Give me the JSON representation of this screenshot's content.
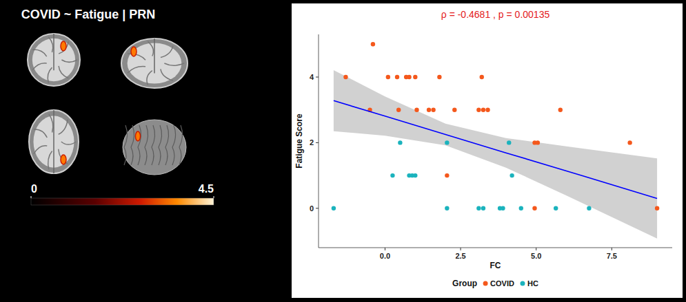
{
  "figure": {
    "title": "COVID ~ Fatigue | PRN",
    "colorbar": {
      "range": [
        0,
        4.5
      ],
      "ticks": [
        0,
        4.5
      ]
    }
  },
  "chart_data": {
    "type": "scatter",
    "annotation": "ρ = -0.4681 , p =  0.00135",
    "x_label": "FC",
    "y_label": "Fatigue Score",
    "legend_title": "Group",
    "legend": "bottom",
    "grid": false,
    "marker": "circle",
    "xlim": [
      -2.2,
      9.5
    ],
    "ylim": [
      -1.2,
      5.3
    ],
    "xticks": [
      {
        "value": 0,
        "label": "0.0"
      },
      {
        "value": 2.5,
        "label": "2.5"
      },
      {
        "value": 5,
        "label": "5.0"
      },
      {
        "value": 7.5,
        "label": "7.5"
      }
    ],
    "yticks": [
      0,
      2,
      4
    ],
    "series": [
      {
        "name": "COVID",
        "color": "#f4581c",
        "x": [
          -1.3,
          -0.4,
          -0.5,
          0.1,
          0.4,
          0.45,
          0.7,
          0.8,
          1.0,
          1.05,
          1.45,
          1.6,
          1.8,
          2.05,
          2.3,
          3.1,
          3.2,
          3.25,
          3.4,
          4.95,
          5.05,
          4.95,
          5.8,
          8.1,
          9.0
        ],
        "values": [
          4,
          5,
          3,
          4,
          4,
          3,
          4,
          4,
          4,
          3,
          3,
          3,
          4,
          1,
          3,
          3,
          4,
          3,
          3,
          2,
          2,
          0,
          3,
          2,
          0
        ]
      },
      {
        "name": "HC",
        "color": "#1bb3bd",
        "x": [
          -1.7,
          0.25,
          0.5,
          0.8,
          0.9,
          1.0,
          2.05,
          2.05,
          3.1,
          3.25,
          3.8,
          3.9,
          4.1,
          4.2,
          4.5,
          5.65,
          6.75
        ],
        "values": [
          0,
          1,
          2,
          1,
          1,
          1,
          2,
          0,
          0,
          0,
          0,
          0,
          2,
          1,
          0,
          0,
          0
        ]
      }
    ],
    "fit": {
      "color": "#0000ff",
      "x": [
        -1.7,
        0,
        2,
        4,
        6,
        9
      ],
      "values": [
        3.28,
        2.81,
        2.25,
        1.69,
        1.14,
        0.3
      ],
      "ci_lower": [
        2.35,
        2.21,
        1.92,
        1.24,
        0.39,
        -0.92
      ],
      "ci_upper": [
        4.21,
        3.41,
        2.58,
        2.14,
        1.89,
        1.52
      ]
    }
  }
}
